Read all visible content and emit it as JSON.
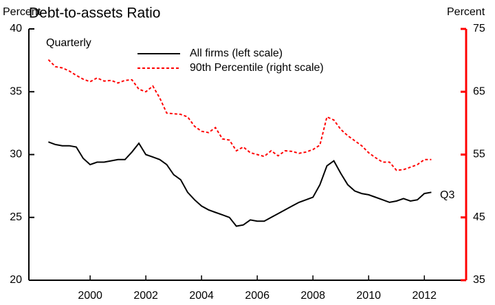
{
  "chart_data": {
    "type": "line",
    "title": "Debt-to-assets Ratio",
    "y_label": "Percent",
    "y2_label": "Percent",
    "annotations": [
      "Quarterly",
      "Q3"
    ],
    "x": [
      1998.5,
      1998.75,
      1999,
      1999.25,
      1999.5,
      1999.75,
      2000,
      2000.25,
      2000.5,
      2000.75,
      2001,
      2001.25,
      2001.5,
      2001.75,
      2002,
      2002.25,
      2002.5,
      2002.75,
      2003,
      2003.25,
      2003.5,
      2003.75,
      2004,
      2004.25,
      2004.5,
      2004.75,
      2005,
      2005.25,
      2005.5,
      2005.75,
      2006,
      2006.25,
      2006.5,
      2006.75,
      2007,
      2007.25,
      2007.5,
      2007.75,
      2008,
      2008.25,
      2008.5,
      2008.75,
      2009,
      2009.25,
      2009.5,
      2009.75,
      2010,
      2010.25,
      2010.5,
      2010.75,
      2011,
      2011.25,
      2011.5,
      2011.75,
      2012,
      2012.25
    ],
    "series": [
      {
        "name": "All firms (left scale)",
        "color": "#000000",
        "style": "solid",
        "axis": "y",
        "values": [
          31.0,
          30.8,
          30.7,
          30.7,
          30.6,
          29.7,
          29.2,
          29.4,
          29.4,
          29.5,
          29.6,
          29.6,
          30.2,
          30.9,
          30.0,
          29.8,
          29.6,
          29.2,
          28.4,
          28.0,
          27.0,
          26.4,
          25.9,
          25.6,
          25.4,
          25.2,
          25.0,
          24.3,
          24.4,
          24.8,
          24.7,
          24.7,
          25.0,
          25.3,
          25.6,
          25.9,
          26.2,
          26.4,
          26.6,
          27.6,
          29.1,
          29.5,
          28.5,
          27.6,
          27.1,
          26.9,
          26.8,
          26.6,
          26.4,
          26.2,
          26.3,
          26.5,
          26.3,
          26.4,
          26.9,
          27.0
        ]
      },
      {
        "name": "90th Percentile (right scale)",
        "color": "#ff0000",
        "style": "dashed",
        "axis": "y2",
        "values": [
          70.1,
          69.0,
          68.8,
          68.3,
          67.6,
          67.0,
          66.6,
          67.2,
          66.7,
          66.8,
          66.4,
          66.8,
          66.9,
          65.4,
          65.0,
          65.9,
          64.0,
          61.6,
          61.5,
          61.4,
          61.0,
          59.5,
          58.7,
          58.5,
          59.3,
          57.5,
          57.3,
          55.6,
          56.2,
          55.3,
          55.0,
          54.7,
          55.6,
          54.8,
          55.6,
          55.5,
          55.2,
          55.4,
          55.8,
          56.5,
          61.0,
          60.5,
          59.0,
          58.0,
          57.2,
          56.4,
          55.3,
          54.5,
          53.8,
          53.8,
          52.5,
          52.6,
          53.0,
          53.4,
          54.2,
          54.2
        ]
      }
    ],
    "xlim": [
      1997.8,
      2013.5
    ],
    "xticks": [
      2000,
      2002,
      2004,
      2006,
      2008,
      2010,
      2012
    ],
    "ylim": [
      20,
      40
    ],
    "yticks": [
      20,
      25,
      30,
      35,
      40
    ],
    "y2lim": [
      35,
      75
    ],
    "y2ticks": [
      35,
      45,
      55,
      65,
      75
    ],
    "y2_color": "#ff0000"
  }
}
